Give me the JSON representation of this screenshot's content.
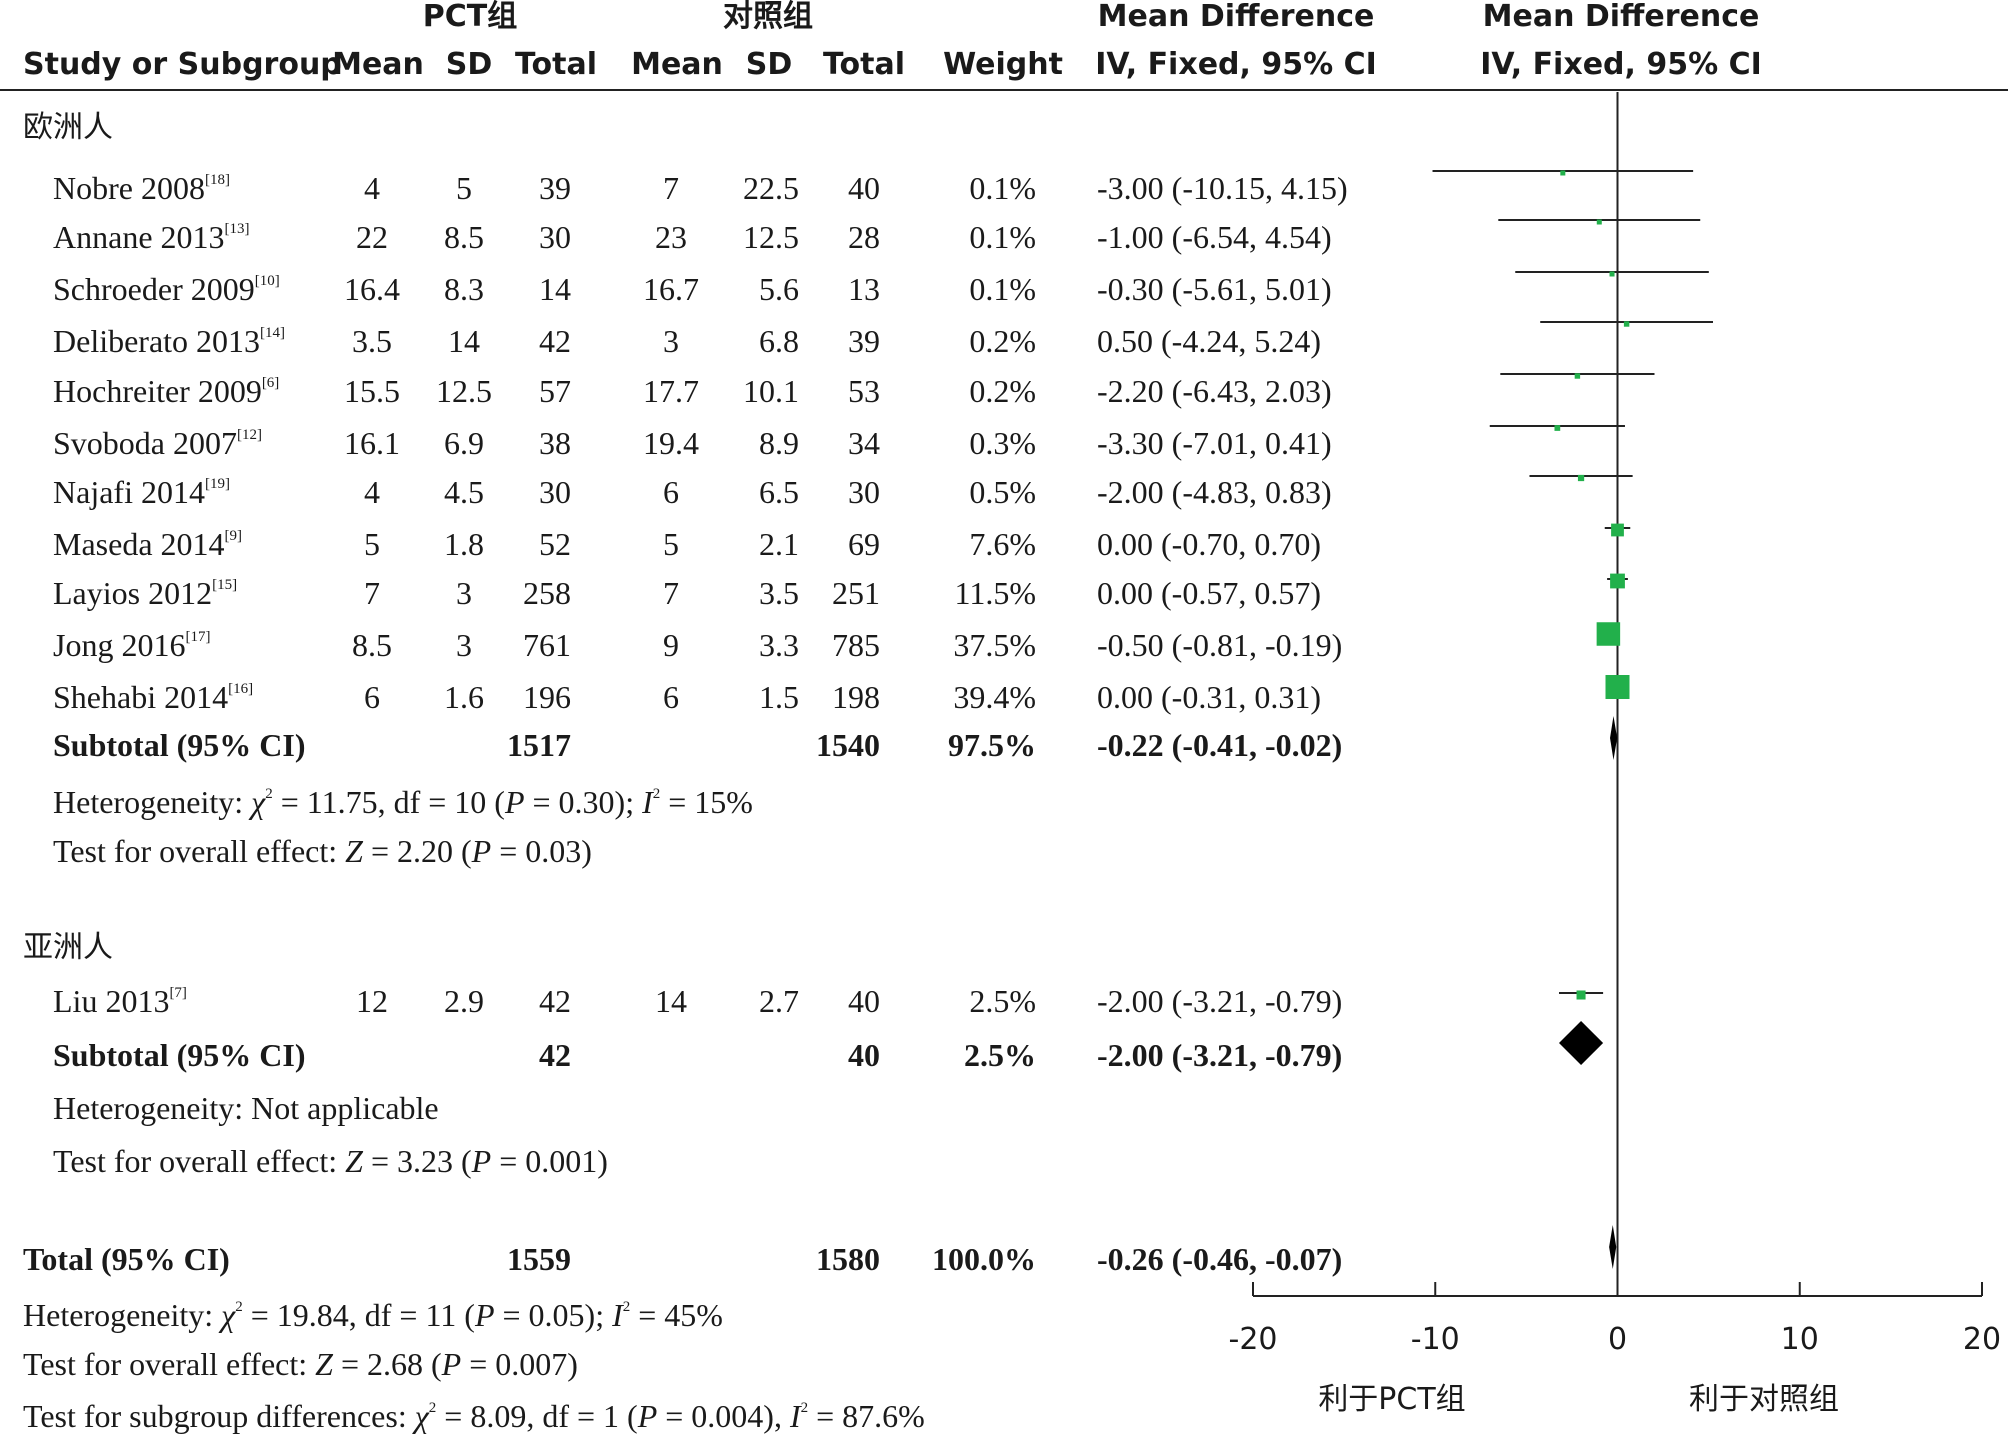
{
  "header": {
    "group1_label": "PCT组",
    "group2_label": "对照组",
    "md_header": "Mean Difference",
    "md_subheader": "IV, Fixed, 95% CI",
    "plot_header": "Mean Difference",
    "plot_subheader": "IV, Fixed, 95% CI",
    "col_study": "Study or Subgroup",
    "col_mean1": "Mean",
    "col_sd1": "SD",
    "col_total1": "Total",
    "col_mean2": "Mean",
    "col_sd2": "SD",
    "col_total2": "Total",
    "col_weight": "Weight"
  },
  "subgroups": [
    {
      "name": "欧洲人",
      "studies": [
        {
          "name": "Nobre 2008",
          "ref": "[18]",
          "mean1": "4",
          "sd1": "5",
          "total1": "39",
          "mean2": "7",
          "sd2": "22.5",
          "total2": "40",
          "weight": "0.1%",
          "ci": "-3.00 (-10.15, 4.15)"
        },
        {
          "name": "Annane 2013",
          "ref": "[13]",
          "mean1": "22",
          "sd1": "8.5",
          "total1": "30",
          "mean2": "23",
          "sd2": "12.5",
          "total2": "28",
          "weight": "0.1%",
          "ci": "-1.00 (-6.54, 4.54)"
        },
        {
          "name": "Schroeder 2009",
          "ref": "[10]",
          "mean1": "16.4",
          "sd1": "8.3",
          "total1": "14",
          "mean2": "16.7",
          "sd2": "5.6",
          "total2": "13",
          "weight": "0.1%",
          "ci": "-0.30 (-5.61, 5.01)"
        },
        {
          "name": "Deliberato 2013",
          "ref": "[14]",
          "mean1": "3.5",
          "sd1": "14",
          "total1": "42",
          "mean2": "3",
          "sd2": "6.8",
          "total2": "39",
          "weight": "0.2%",
          "ci": "0.50 (-4.24, 5.24)"
        },
        {
          "name": "Hochreiter 2009",
          "ref": "[6]",
          "mean1": "15.5",
          "sd1": "12.5",
          "total1": "57",
          "mean2": "17.7",
          "sd2": "10.1",
          "total2": "53",
          "weight": "0.2%",
          "ci": "-2.20 (-6.43, 2.03)"
        },
        {
          "name": "Svoboda 2007",
          "ref": "[12]",
          "mean1": "16.1",
          "sd1": "6.9",
          "total1": "38",
          "mean2": "19.4",
          "sd2": "8.9",
          "total2": "34",
          "weight": "0.3%",
          "ci": "-3.30 (-7.01, 0.41)"
        },
        {
          "name": "Najafi 2014",
          "ref": "[19]",
          "mean1": "4",
          "sd1": "4.5",
          "total1": "30",
          "mean2": "6",
          "sd2": "6.5",
          "total2": "30",
          "weight": "0.5%",
          "ci": "-2.00 (-4.83, 0.83)"
        },
        {
          "name": "Maseda 2014",
          "ref": "[9]",
          "mean1": "5",
          "sd1": "1.8",
          "total1": "52",
          "mean2": "5",
          "sd2": "2.1",
          "total2": "69",
          "weight": "7.6%",
          "ci": "0.00 (-0.70, 0.70)"
        },
        {
          "name": "Layios 2012",
          "ref": "[15]",
          "mean1": "7",
          "sd1": "3",
          "total1": "258",
          "mean2": "7",
          "sd2": "3.5",
          "total2": "251",
          "weight": "11.5%",
          "ci": "0.00 (-0.57, 0.57)"
        },
        {
          "name": "Jong 2016",
          "ref": "[17]",
          "mean1": "8.5",
          "sd1": "3",
          "total1": "761",
          "mean2": "9",
          "sd2": "3.3",
          "total2": "785",
          "weight": "37.5%",
          "ci": "-0.50 (-0.81, -0.19)"
        },
        {
          "name": "Shehabi 2014",
          "ref": "[16]",
          "mean1": "6",
          "sd1": "1.6",
          "total1": "196",
          "mean2": "6",
          "sd2": "1.5",
          "total2": "198",
          "weight": "39.4%",
          "ci": "0.00 (-0.31, 0.31)"
        }
      ],
      "subtotal": {
        "label": "Subtotal (95% CI)",
        "total1": "1517",
        "total2": "1540",
        "weight": "97.5%",
        "ci": "-0.22 (-0.41, -0.02)"
      },
      "heterogeneity": {
        "prefix": "Heterogeneity: ",
        "chi_label": "χ",
        "chi_rest": " = 11.75, df = 10 (",
        "p": "P",
        "p_rest": " = 0.30); ",
        "i2": "I",
        "i2_rest": " = 15%"
      },
      "overall": {
        "prefix": "Test for overall effect: ",
        "z": "Z",
        "z_rest": " = 2.20 (",
        "p": "P",
        "p_rest": " = 0.03)"
      }
    },
    {
      "name": "亚洲人",
      "studies": [
        {
          "name": "Liu 2013",
          "ref": "[7]",
          "mean1": "12",
          "sd1": "2.9",
          "total1": "42",
          "mean2": "14",
          "sd2": "2.7",
          "total2": "40",
          "weight": "2.5%",
          "ci": "-2.00 (-3.21, -0.79)"
        }
      ],
      "subtotal": {
        "label": "Subtotal (95% CI)",
        "total1": "42",
        "total2": "40",
        "weight": "2.5%",
        "ci": "-2.00 (-3.21, -0.79)"
      },
      "heterogeneity_text": "Heterogeneity: Not applicable",
      "overall": {
        "prefix": "Test for overall effect: ",
        "z": "Z",
        "z_rest": " = 3.23 (",
        "p": "P",
        "p_rest": " = 0.001)"
      }
    }
  ],
  "total": {
    "label": "Total (95% CI)",
    "total1": "1559",
    "total2": "1580",
    "weight": "100.0%",
    "ci": "-0.26 (-0.46, -0.07)",
    "heterogeneity": {
      "prefix": "Heterogeneity: ",
      "chi_label": "χ",
      "chi_rest": " = 19.84, df = 11 (",
      "p": "P",
      "p_rest": " = 0.05); ",
      "i2": "I",
      "i2_rest": " = 45%"
    },
    "overall": {
      "prefix": "Test for overall effect: ",
      "z": "Z",
      "z_rest": " = 2.68 (",
      "p": "P",
      "p_rest": " = 0.007)"
    },
    "subgroup_diff": {
      "prefix": "Test for subgroup differences: ",
      "chi_label": "χ",
      "chi_rest": " = 8.09, df = 1 (",
      "p": "P",
      "p_rest": " = 0.004), ",
      "i2": "I",
      "i2_rest": " = 87.6%"
    }
  },
  "axis": {
    "ticks": [
      "-20",
      "-10",
      "0",
      "10",
      "20"
    ],
    "left_label": "利于PCT组",
    "right_label": "利于对照组"
  },
  "colors": {
    "study_marker": "#22b04b",
    "diamond": "#000000",
    "lines": "#222222"
  },
  "chart_data": {
    "type": "forest",
    "xlim": [
      -20,
      20
    ],
    "xticks": [
      -20,
      -10,
      0,
      10,
      20
    ],
    "xlabel_left": "利于PCT组",
    "xlabel_right": "利于对照组",
    "studies": [
      {
        "label": "Nobre 2008",
        "md": -3.0,
        "lo": -10.15,
        "hi": 4.15,
        "weight": 0.1
      },
      {
        "label": "Annane 2013",
        "md": -1.0,
        "lo": -6.54,
        "hi": 4.54,
        "weight": 0.1
      },
      {
        "label": "Schroeder 2009",
        "md": -0.3,
        "lo": -5.61,
        "hi": 5.01,
        "weight": 0.1
      },
      {
        "label": "Deliberato 2013",
        "md": 0.5,
        "lo": -4.24,
        "hi": 5.24,
        "weight": 0.2
      },
      {
        "label": "Hochreiter 2009",
        "md": -2.2,
        "lo": -6.43,
        "hi": 2.03,
        "weight": 0.2
      },
      {
        "label": "Svoboda 2007",
        "md": -3.3,
        "lo": -7.01,
        "hi": 0.41,
        "weight": 0.3
      },
      {
        "label": "Najafi 2014",
        "md": -2.0,
        "lo": -4.83,
        "hi": 0.83,
        "weight": 0.5
      },
      {
        "label": "Maseda 2014",
        "md": 0.0,
        "lo": -0.7,
        "hi": 0.7,
        "weight": 7.6
      },
      {
        "label": "Layios 2012",
        "md": 0.0,
        "lo": -0.57,
        "hi": 0.57,
        "weight": 11.5
      },
      {
        "label": "Jong 2016",
        "md": -0.5,
        "lo": -0.81,
        "hi": -0.19,
        "weight": 37.5
      },
      {
        "label": "Shehabi 2014",
        "md": 0.0,
        "lo": -0.31,
        "hi": 0.31,
        "weight": 39.4
      },
      {
        "label": "Liu 2013",
        "md": -2.0,
        "lo": -3.21,
        "hi": -0.79,
        "weight": 2.5
      }
    ],
    "diamonds": [
      {
        "label": "Subtotal (95% CI) 欧洲人",
        "md": -0.22,
        "lo": -0.41,
        "hi": -0.02
      },
      {
        "label": "Subtotal (95% CI) 亚洲人",
        "md": -2.0,
        "lo": -3.21,
        "hi": -0.79
      },
      {
        "label": "Total (95% CI)",
        "md": -0.26,
        "lo": -0.46,
        "hi": -0.07
      }
    ]
  }
}
